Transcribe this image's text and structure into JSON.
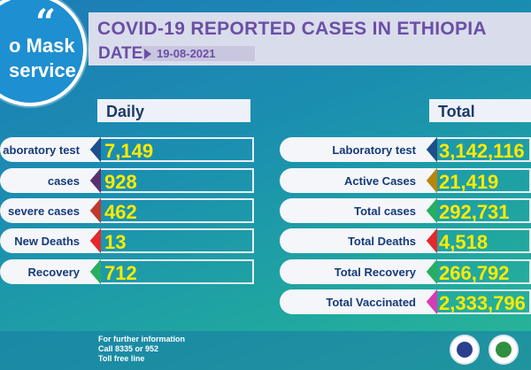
{
  "bubble": {
    "line1": "o Mask",
    "line2": "service"
  },
  "title": "COVID-19 REPORTED CASES IN ETHIOPIA",
  "date_label": "DATE",
  "date_value": "19-08-2021",
  "daily": {
    "header": "Daily",
    "rows": [
      {
        "label": "aboratory test",
        "value": "7,149",
        "color": "#1f4f8a"
      },
      {
        "label": "cases",
        "value": "928",
        "color": "#5b2f6e"
      },
      {
        "label": "severe cases",
        "value": "462",
        "color": "#c0392b"
      },
      {
        "label": "New Deaths",
        "value": "13",
        "color": "#e3292e"
      },
      {
        "label": "Recovery",
        "value": "712",
        "color": "#27ae60"
      }
    ]
  },
  "total": {
    "header": "Total",
    "rows": [
      {
        "label": "Laboratory test",
        "value": "3,142,116",
        "color": "#1f4f8a"
      },
      {
        "label": "Active Cases",
        "value": "21,419",
        "color": "#b8860b"
      },
      {
        "label": "Total cases",
        "value": "292,731",
        "color": "#27ae60"
      },
      {
        "label": "Total Deaths",
        "value": "4,518",
        "color": "#e3292e"
      },
      {
        "label": "Total Recovery",
        "value": "266,792",
        "color": "#27ae60"
      },
      {
        "label": "Total Vaccinated",
        "value": "2,333,796",
        "color": "#d63bb4"
      }
    ]
  },
  "footer": {
    "line1": "For further information",
    "line2": "Call 8335 or 952",
    "line3": "Toll free line"
  }
}
